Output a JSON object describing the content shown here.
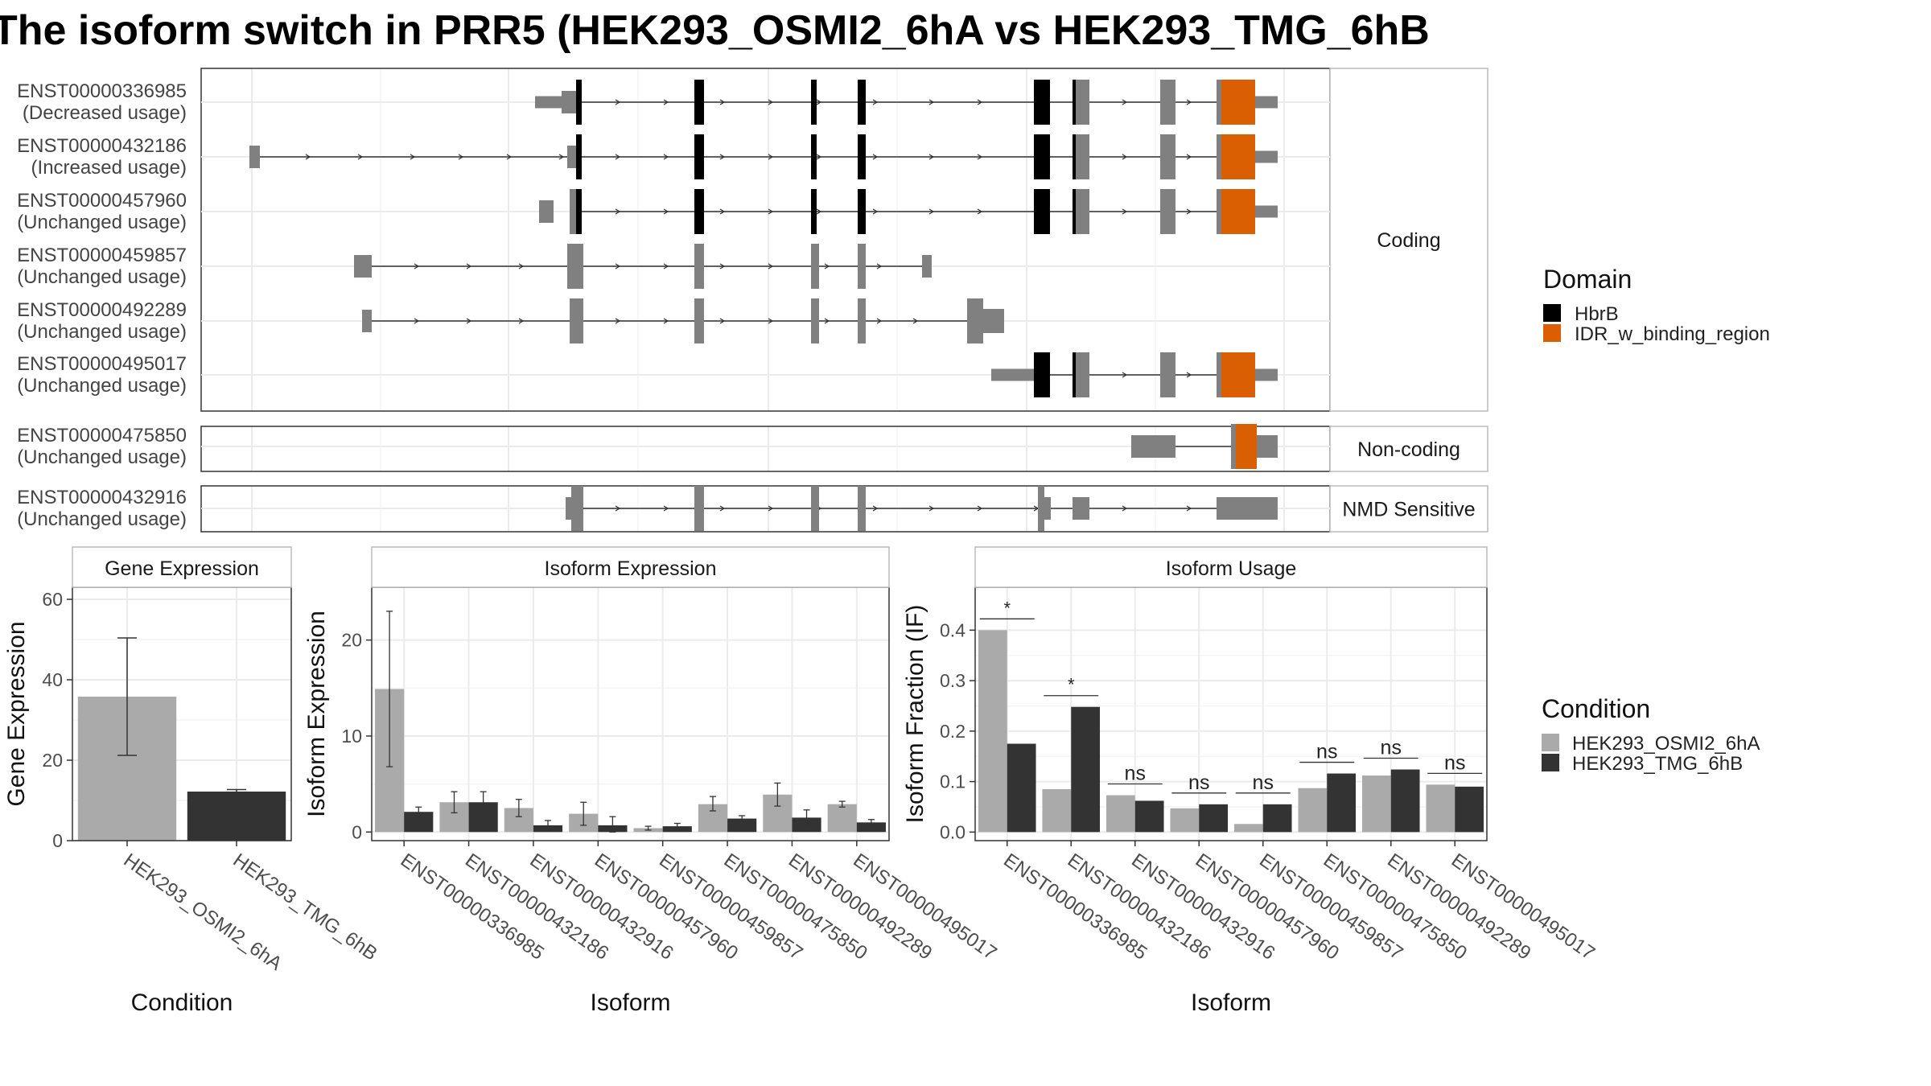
{
  "title": "The isoform switch in PRR5 (HEK293_OSMI2_6hA vs HEK293_TMG_6hB",
  "colors": {
    "hbrb": "#000000",
    "idr": "#d95f02",
    "exon_gray": "#808080",
    "cond_a": "#aaaaaa",
    "cond_b": "#333333",
    "grid": "#ebebeb",
    "panel_border": "#333333",
    "strip_border": "#bbbbbb"
  },
  "transcript_panel": {
    "groups": [
      {
        "label": "Coding",
        "transcripts": [
          {
            "id": "ENST00000336985",
            "usage": "(Decreased usage)"
          },
          {
            "id": "ENST00000432186",
            "usage": "(Increased usage)"
          },
          {
            "id": "ENST00000457960",
            "usage": "(Unchanged usage)"
          },
          {
            "id": "ENST00000459857",
            "usage": "(Unchanged usage)"
          },
          {
            "id": "ENST00000492289",
            "usage": "(Unchanged usage)"
          },
          {
            "id": "ENST00000495017",
            "usage": "(Unchanged usage)"
          }
        ]
      },
      {
        "label": "Non-coding",
        "transcripts": [
          {
            "id": "ENST00000475850",
            "usage": "(Unchanged usage)"
          }
        ]
      },
      {
        "label": "NMD Sensitive",
        "transcripts": [
          {
            "id": "ENST00000432916",
            "usage": "(Unchanged usage)"
          }
        ]
      }
    ],
    "domain_legend": {
      "title": "Domain",
      "items": [
        {
          "label": "HbrB",
          "color": "#000000"
        },
        {
          "label": "IDR_w_binding_region",
          "color": "#d95f02"
        }
      ]
    }
  },
  "condition_legend": {
    "title": "Condition",
    "items": [
      {
        "label": "HEK293_OSMI2_6hA",
        "color": "#aaaaaa"
      },
      {
        "label": "HEK293_TMG_6hB",
        "color": "#333333"
      }
    ]
  },
  "chart_data": [
    {
      "type": "bar",
      "title": "Gene Expression",
      "xlabel": "Condition",
      "ylabel": "Gene Expression",
      "categories": [
        "HEK293_OSMI2_6hA",
        "HEK293_TMG_6hB"
      ],
      "values": [
        35.8,
        12.2
      ],
      "error_low": [
        21.2,
        11.7
      ],
      "error_high": [
        50.4,
        12.7
      ],
      "ylim": [
        0,
        63
      ],
      "yticks": [
        0,
        20,
        40,
        60
      ]
    },
    {
      "type": "bar",
      "title": "Isoform Expression",
      "xlabel": "Isoform",
      "ylabel": "Isoform Expression",
      "categories": [
        "ENST00000336985",
        "ENST00000432186",
        "ENST00000432916",
        "ENST00000457960",
        "ENST00000459857",
        "ENST00000475850",
        "ENST00000492289",
        "ENST00000495017"
      ],
      "series": [
        {
          "name": "HEK293_OSMI2_6hA",
          "values": [
            14.9,
            3.1,
            2.5,
            1.9,
            0.4,
            2.9,
            3.9,
            2.9
          ],
          "error_low": [
            6.8,
            2.0,
            1.6,
            0.7,
            0.2,
            2.2,
            2.7,
            2.6
          ],
          "error_high": [
            23.0,
            4.2,
            3.4,
            3.1,
            0.6,
            3.7,
            5.1,
            3.2
          ]
        },
        {
          "name": "HEK293_TMG_6hB",
          "values": [
            2.1,
            3.1,
            0.7,
            0.7,
            0.6,
            1.4,
            1.5,
            1.0
          ],
          "error_low": [
            1.6,
            2.0,
            0.3,
            0.0,
            0.3,
            1.1,
            0.8,
            0.8
          ],
          "error_high": [
            2.6,
            4.2,
            1.2,
            1.6,
            0.9,
            1.7,
            2.3,
            1.3
          ]
        }
      ],
      "ylim": [
        -0.9,
        25.5
      ],
      "yticks": [
        0,
        10,
        20
      ]
    },
    {
      "type": "bar",
      "title": "Isoform Usage",
      "xlabel": "Isoform",
      "ylabel": "Isoform Fraction (IF)",
      "categories": [
        "ENST00000336985",
        "ENST00000432186",
        "ENST00000432916",
        "ENST00000457960",
        "ENST00000459857",
        "ENST00000475850",
        "ENST00000492289",
        "ENST00000495017"
      ],
      "series": [
        {
          "name": "HEK293_OSMI2_6hA",
          "values": [
            0.4,
            0.085,
            0.073,
            0.047,
            0.016,
            0.087,
            0.112,
            0.094
          ]
        },
        {
          "name": "HEK293_TMG_6hB",
          "values": [
            0.175,
            0.248,
            0.062,
            0.055,
            0.055,
            0.116,
            0.124,
            0.09
          ]
        }
      ],
      "significance": [
        "*",
        "*",
        "ns",
        "ns",
        "ns",
        "ns",
        "ns",
        "ns"
      ],
      "ylim": [
        -0.017,
        0.485
      ],
      "yticks": [
        0.0,
        0.1,
        0.2,
        0.3,
        0.4
      ],
      "ytick_labels": [
        "0.0",
        "0.1",
        "0.2",
        "0.3",
        "0.4"
      ]
    }
  ]
}
